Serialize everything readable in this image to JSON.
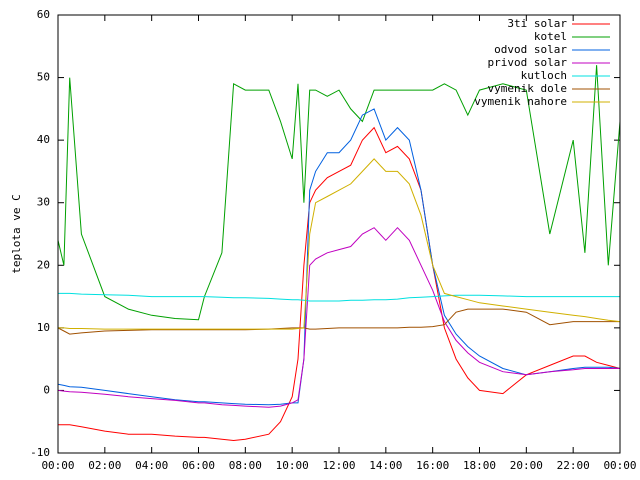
{
  "chart_data": {
    "type": "line",
    "ylabel": "teplota ve C",
    "legend": "top-right",
    "xlim": [
      0,
      24
    ],
    "xticks": [
      {
        "value": 0,
        "label": "00:00"
      },
      {
        "value": 2,
        "label": "02:00"
      },
      {
        "value": 4,
        "label": "04:00"
      },
      {
        "value": 6,
        "label": "06:00"
      },
      {
        "value": 8,
        "label": "08:00"
      },
      {
        "value": 10,
        "label": "10:00"
      },
      {
        "value": 12,
        "label": "12:00"
      },
      {
        "value": 14,
        "label": "14:00"
      },
      {
        "value": 16,
        "label": "16:00"
      },
      {
        "value": 18,
        "label": "18:00"
      },
      {
        "value": 20,
        "label": "20:00"
      },
      {
        "value": 22,
        "label": "22:00"
      },
      {
        "value": 24,
        "label": "00:00"
      }
    ],
    "ylim": [
      -10,
      60
    ],
    "yticks": [
      -10,
      0,
      10,
      20,
      30,
      40,
      50,
      60
    ],
    "x": [
      0,
      0.25,
      0.5,
      1,
      2,
      3,
      4,
      5,
      6,
      6.25,
      7,
      7.5,
      8,
      9,
      9.5,
      10,
      10.25,
      10.5,
      10.75,
      11,
      11.5,
      12,
      12.5,
      13,
      13.5,
      14,
      14.5,
      15,
      15.5,
      16,
      16.5,
      17,
      17.5,
      18,
      19,
      20,
      21,
      22,
      22.5,
      23,
      23.5,
      24
    ],
    "series": [
      {
        "name": "3ti solar",
        "color": "#ff0000",
        "values": [
          -5.5,
          -5.5,
          -5.5,
          -5.8,
          -6.5,
          -7,
          -7,
          -7.3,
          -7.5,
          -7.5,
          -7.8,
          -8,
          -7.8,
          -7,
          -5,
          -1,
          5,
          20,
          30,
          32,
          34,
          35,
          36,
          40,
          42,
          38,
          39,
          37,
          32,
          20,
          10,
          5,
          2,
          0,
          -0.5,
          2.5,
          4,
          5.5,
          5.5,
          4.5,
          4,
          3.5
        ]
      },
      {
        "name": "kotel",
        "color": "#00a000",
        "values": [
          24,
          20,
          50,
          25,
          15,
          13,
          12,
          11.5,
          11.3,
          15,
          22,
          49,
          48,
          48,
          43,
          37,
          49,
          30,
          48,
          48,
          47,
          48,
          45,
          43,
          48,
          48,
          48,
          48,
          48,
          48,
          49,
          48,
          44,
          48,
          49,
          48,
          25,
          40,
          22,
          52,
          20,
          43
        ]
      },
      {
        "name": "odvod solar",
        "color": "#0060e0",
        "values": [
          1,
          0.8,
          0.6,
          0.5,
          0,
          -0.5,
          -1,
          -1.5,
          -1.8,
          -1.8,
          -2,
          -2.1,
          -2.2,
          -2.3,
          -2.2,
          -2,
          -2,
          5,
          32,
          35,
          38,
          38,
          40,
          44,
          45,
          40,
          42,
          40,
          32,
          20,
          12,
          9,
          7,
          5.5,
          3.5,
          2.5,
          3,
          3.5,
          3.7,
          3.7,
          3.7,
          3.5
        ]
      },
      {
        "name": "privod solar",
        "color": "#c000c0",
        "values": [
          0,
          -0.1,
          -0.2,
          -0.3,
          -0.6,
          -1,
          -1.3,
          -1.6,
          -2,
          -2,
          -2.3,
          -2.4,
          -2.5,
          -2.7,
          -2.5,
          -2,
          -1.5,
          5,
          20,
          21,
          22,
          22.5,
          23,
          25,
          26,
          24,
          26,
          24,
          20,
          16,
          11,
          8,
          6,
          4.5,
          3,
          2.5,
          3,
          3.3,
          3.5,
          3.5,
          3.5,
          3.5
        ]
      },
      {
        "name": "kutloch",
        "color": "#00e0e0",
        "values": [
          15.5,
          15.5,
          15.5,
          15.4,
          15.3,
          15.2,
          15,
          15,
          15,
          15,
          14.9,
          14.8,
          14.8,
          14.7,
          14.6,
          14.5,
          14.5,
          14.4,
          14.3,
          14.3,
          14.3,
          14.3,
          14.4,
          14.4,
          14.5,
          14.5,
          14.6,
          14.8,
          14.9,
          15,
          15.1,
          15.2,
          15.2,
          15.2,
          15.1,
          15,
          15,
          15,
          15,
          15,
          15,
          15
        ]
      },
      {
        "name": "vymenik dole",
        "color": "#a05000",
        "values": [
          10,
          9.5,
          9,
          9.2,
          9.5,
          9.6,
          9.7,
          9.7,
          9.7,
          9.7,
          9.7,
          9.7,
          9.7,
          9.8,
          9.9,
          10,
          10,
          10,
          9.8,
          9.8,
          9.9,
          10,
          10,
          10,
          10,
          10,
          10,
          10.1,
          10.1,
          10.2,
          10.5,
          12.5,
          13,
          13,
          13,
          12.5,
          10.5,
          11,
          11,
          11,
          11,
          11
        ]
      },
      {
        "name": "vymenik nahore",
        "color": "#d0b000",
        "values": [
          10,
          10,
          9.9,
          9.9,
          9.8,
          9.8,
          9.8,
          9.8,
          9.8,
          9.8,
          9.8,
          9.8,
          9.8,
          9.8,
          9.8,
          9.8,
          9.9,
          10,
          25,
          30,
          31,
          32,
          33,
          35,
          37,
          35,
          35,
          33,
          28,
          20,
          15.5,
          15,
          14.5,
          14,
          13.5,
          13,
          12.5,
          12,
          11.8,
          11.5,
          11.2,
          11
        ]
      }
    ]
  }
}
